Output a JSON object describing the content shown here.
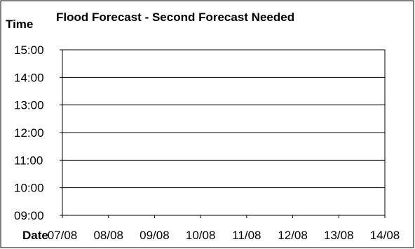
{
  "chart_data": {
    "type": "line",
    "title": "Flood Forecast - Second Forecast Needed",
    "ylabel": "Time",
    "xlabel": "Date",
    "y_ticks": [
      "15:00",
      "14:00",
      "13:00",
      "12:00",
      "11:00",
      "10:00",
      "09:00"
    ],
    "ylim": [
      "09:00",
      "15:00"
    ],
    "categories": [
      "07/08",
      "08/08",
      "09/08",
      "10/08",
      "11/08",
      "12/08",
      "13/08",
      "14/08"
    ],
    "series": [],
    "grid": true,
    "legend": "none"
  }
}
